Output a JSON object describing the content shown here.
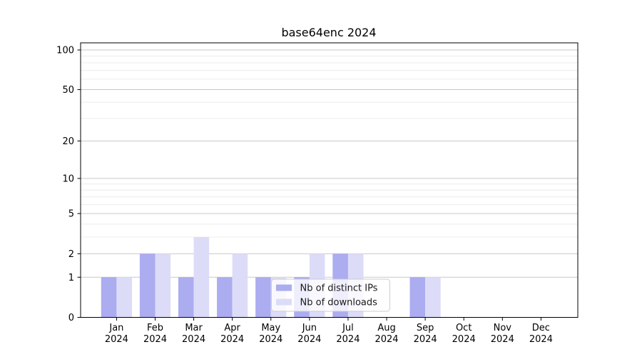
{
  "title": "base64enc 2024",
  "chart_data": {
    "type": "bar",
    "title": "base64enc 2024",
    "categories": [
      "Jan 2024",
      "Feb 2024",
      "Mar 2024",
      "Apr 2024",
      "May 2024",
      "Jun 2024",
      "Jul 2024",
      "Aug 2024",
      "Sep 2024",
      "Oct 2024",
      "Nov 2024",
      "Dec 2024"
    ],
    "x_tick_months": [
      "Jan",
      "Feb",
      "Mar",
      "Apr",
      "May",
      "Jun",
      "Jul",
      "Aug",
      "Sep",
      "Oct",
      "Nov",
      "Dec"
    ],
    "x_tick_year": "2024",
    "series": [
      {
        "name": "Nb of distinct IPs",
        "color": "#acacf0",
        "values": [
          1,
          2,
          1,
          1,
          1,
          1,
          2,
          0,
          1,
          0,
          0,
          0
        ]
      },
      {
        "name": "Nb of downloads",
        "color": "#dcdcf8",
        "values": [
          1,
          2,
          3,
          2,
          1,
          2,
          2,
          0,
          1,
          0,
          0,
          0
        ]
      }
    ],
    "y_scale": "log1p",
    "y_ticks": [
      0,
      1,
      2,
      5,
      10,
      20,
      50,
      100
    ],
    "y_tick_labels": [
      "0",
      "1",
      "2",
      "5",
      "10",
      "20",
      "50",
      "100"
    ],
    "y_minor_ticks": [
      3,
      4,
      6,
      7,
      8,
      9,
      30,
      40,
      60,
      70,
      80,
      90
    ],
    "ylim": [
      0,
      113
    ],
    "grid": "horizontal, major and minor",
    "legend": {
      "position": "inside-bottom-center",
      "entries": [
        "Nb of distinct IPs",
        "Nb of downloads"
      ]
    },
    "colors": {
      "major_grid": "#c9c9c9",
      "minor_grid": "#ececec",
      "axis": "#000000",
      "legend_border": "#cccccc",
      "legend_background": "rgba(255,255,255,0.8)"
    }
  }
}
